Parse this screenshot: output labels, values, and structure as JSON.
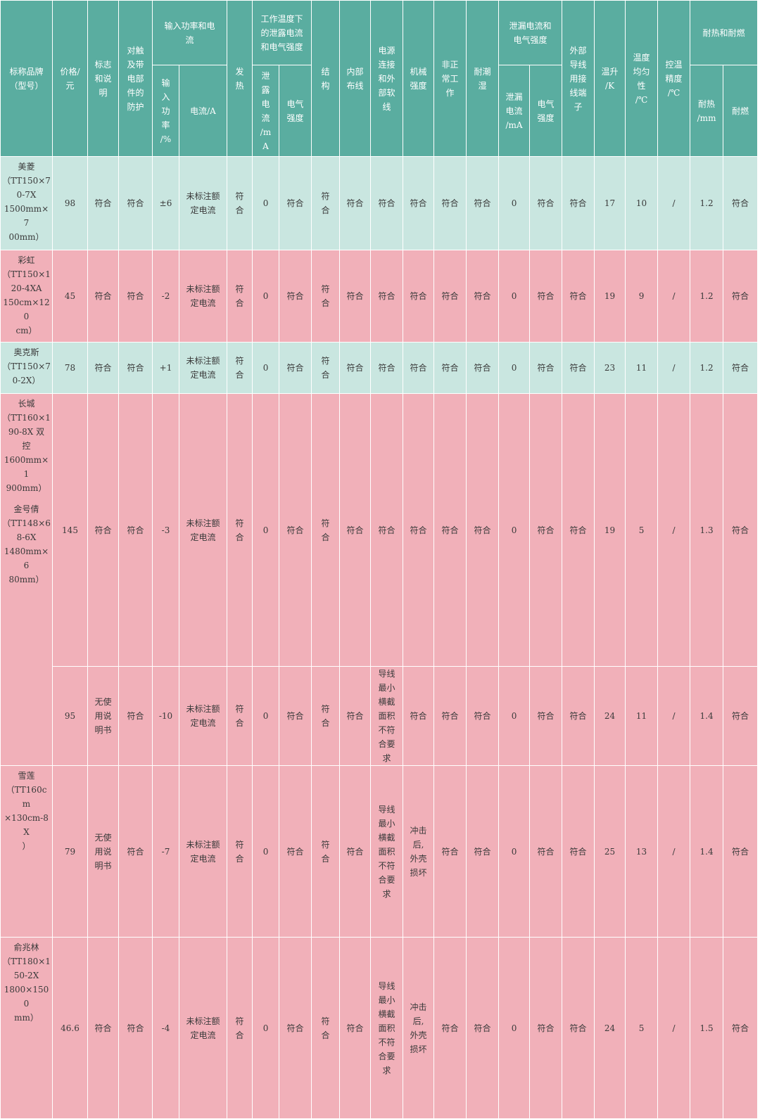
{
  "headers": {
    "brand": "标称品牌\n（型号）",
    "price": "价格/\n元",
    "marking": "标志\n和说\n明",
    "protection": "对触\n及带\n电部\n件的\n防护",
    "power_group": "输入功率和电\n流",
    "power_pct": "输\n入\n功\n率\n/%",
    "current": "电流/A",
    "heating": "发\n热",
    "leak_work_group": "工作温度下\n的泄露电流\n和电气强度",
    "leak_current": "泄\n露\n电\n流\n/m\nA",
    "elec_strength": "电气\n强度",
    "structure": "结\n构",
    "wiring": "内部\n布线",
    "power_conn": "电源\n连接\n和外\n部软\n线",
    "mech": "机械\n强度",
    "abnormal": "非正\n常工\n作",
    "moisture": "耐潮\n湿",
    "leak_group": "泄漏电流和\n电气强度",
    "leak_current2": "泄漏\n电流\n/mA",
    "elec_strength2": "电气\n强度",
    "ext_terminal": "外部\n导线\n用接\n线端\n子",
    "temp_rise": "温升\n/K",
    "uniformity": "温度\n均匀\n性\n/℃",
    "accuracy": "控温\n精度\n/℃",
    "heat_fire_group": "耐热和耐燃",
    "heat_res": "耐热\n/mm",
    "fire_res": "耐燃"
  },
  "rows": [
    {
      "style": "teal",
      "brand": [
        "美菱",
        "（TT150×7",
        "0-7X",
        "1500mm×7",
        "00mm）"
      ],
      "cells": [
        "98",
        "符合",
        "符合",
        "±6",
        "未标注额\n定电流",
        "符\n合",
        "0",
        "符合",
        "符\n合",
        "符合",
        "符合",
        "符合",
        "符合",
        "符合",
        "0",
        "符合",
        "符合",
        "17",
        "10",
        "/",
        "1.2",
        "符合"
      ]
    },
    {
      "style": "pink",
      "brand": [
        "彩虹",
        "（TT150×1",
        "20-4XA",
        "150cm×120",
        "cm）"
      ],
      "cells": [
        "45",
        "符合",
        "符合",
        "-2",
        "未标注额\n定电流",
        "符\n合",
        "0",
        "符合",
        "符\n合",
        "符合",
        "符合",
        "符合",
        "符合",
        "符合",
        "0",
        "符合",
        "符合",
        "19",
        "9",
        "/",
        "1.2",
        "符合"
      ]
    },
    {
      "style": "teal",
      "brand": [
        "奥克斯",
        "（TT150×7",
        "0-2X）"
      ],
      "cells": [
        "78",
        "符合",
        "符合",
        "+1",
        "未标注额\n定电流",
        "符\n合",
        "0",
        "符合",
        "符\n合",
        "符合",
        "符合",
        "符合",
        "符合",
        "符合",
        "0",
        "符合",
        "符合",
        "23",
        "11",
        "/",
        "1.2",
        "符合"
      ]
    },
    {
      "style": "pink",
      "brand": [
        "长城",
        "（TT160×1",
        "90-8X 双",
        "控",
        "1600mm×1",
        "900mm）"
      ],
      "cells": [
        "145",
        "符合",
        "符合",
        "-3",
        "未标注额\n定电流",
        "符\n合",
        "0",
        "符合",
        "符\n合",
        "符合",
        "符合",
        "符合",
        "符合",
        "符合",
        "0",
        "符合",
        "符合",
        "19",
        "5",
        "/",
        "1.3",
        "符合"
      ]
    },
    {
      "style": "pink",
      "brand": [
        "金号倩",
        "（TT148×6",
        "8-6X",
        "1480mm×6",
        "80mm）"
      ],
      "cells": [
        "95",
        "无使\n用说\n明书",
        "符合",
        "-10",
        "未标注额\n定电流",
        "符\n合",
        "0",
        "符合",
        "符\n合",
        "符合",
        "导线\n最小\n横截\n面积\n不符\n合要\n求",
        "符合",
        "符合",
        "符合",
        "0",
        "符合",
        "符合",
        "24",
        "11",
        "/",
        "1.4",
        "符合"
      ]
    },
    {
      "style": "pink",
      "brand": [
        "雪莲",
        "（TT160cm",
        "×130cm-8X",
        "）"
      ],
      "cells": [
        "79",
        "无使\n用说\n明书",
        "符合",
        "-7",
        "未标注额\n定电流",
        "符\n合",
        "0",
        "符合",
        "符\n合",
        "符合",
        "导线\n最小\n横截\n面积\n不符\n合要\n求",
        "冲击\n后,\n外壳\n损坏",
        "符合",
        "符合",
        "0",
        "符合",
        "符合",
        "25",
        "13",
        "/",
        "1.4",
        "符合"
      ]
    },
    {
      "style": "pink",
      "brand": [
        "俞兆林",
        "（TT180×1",
        "50-2X",
        "1800×1500",
        "mm）"
      ],
      "cells": [
        "46.6",
        "符合",
        "符合",
        "-4",
        "未标注额\n定电流",
        "符\n合",
        "0",
        "符合",
        "符\n合",
        "符合",
        "导线\n最小\n横截\n面积\n不符\n合要\n求",
        "冲击\n后,\n外壳\n损坏",
        "符合",
        "符合",
        "0",
        "符合",
        "符合",
        "24",
        "5",
        "/",
        "1.5",
        "符合"
      ]
    }
  ],
  "colors": {
    "header": "#5aada0",
    "teal_row": "#c9e6e0",
    "pink_row": "#f1b0b9"
  }
}
